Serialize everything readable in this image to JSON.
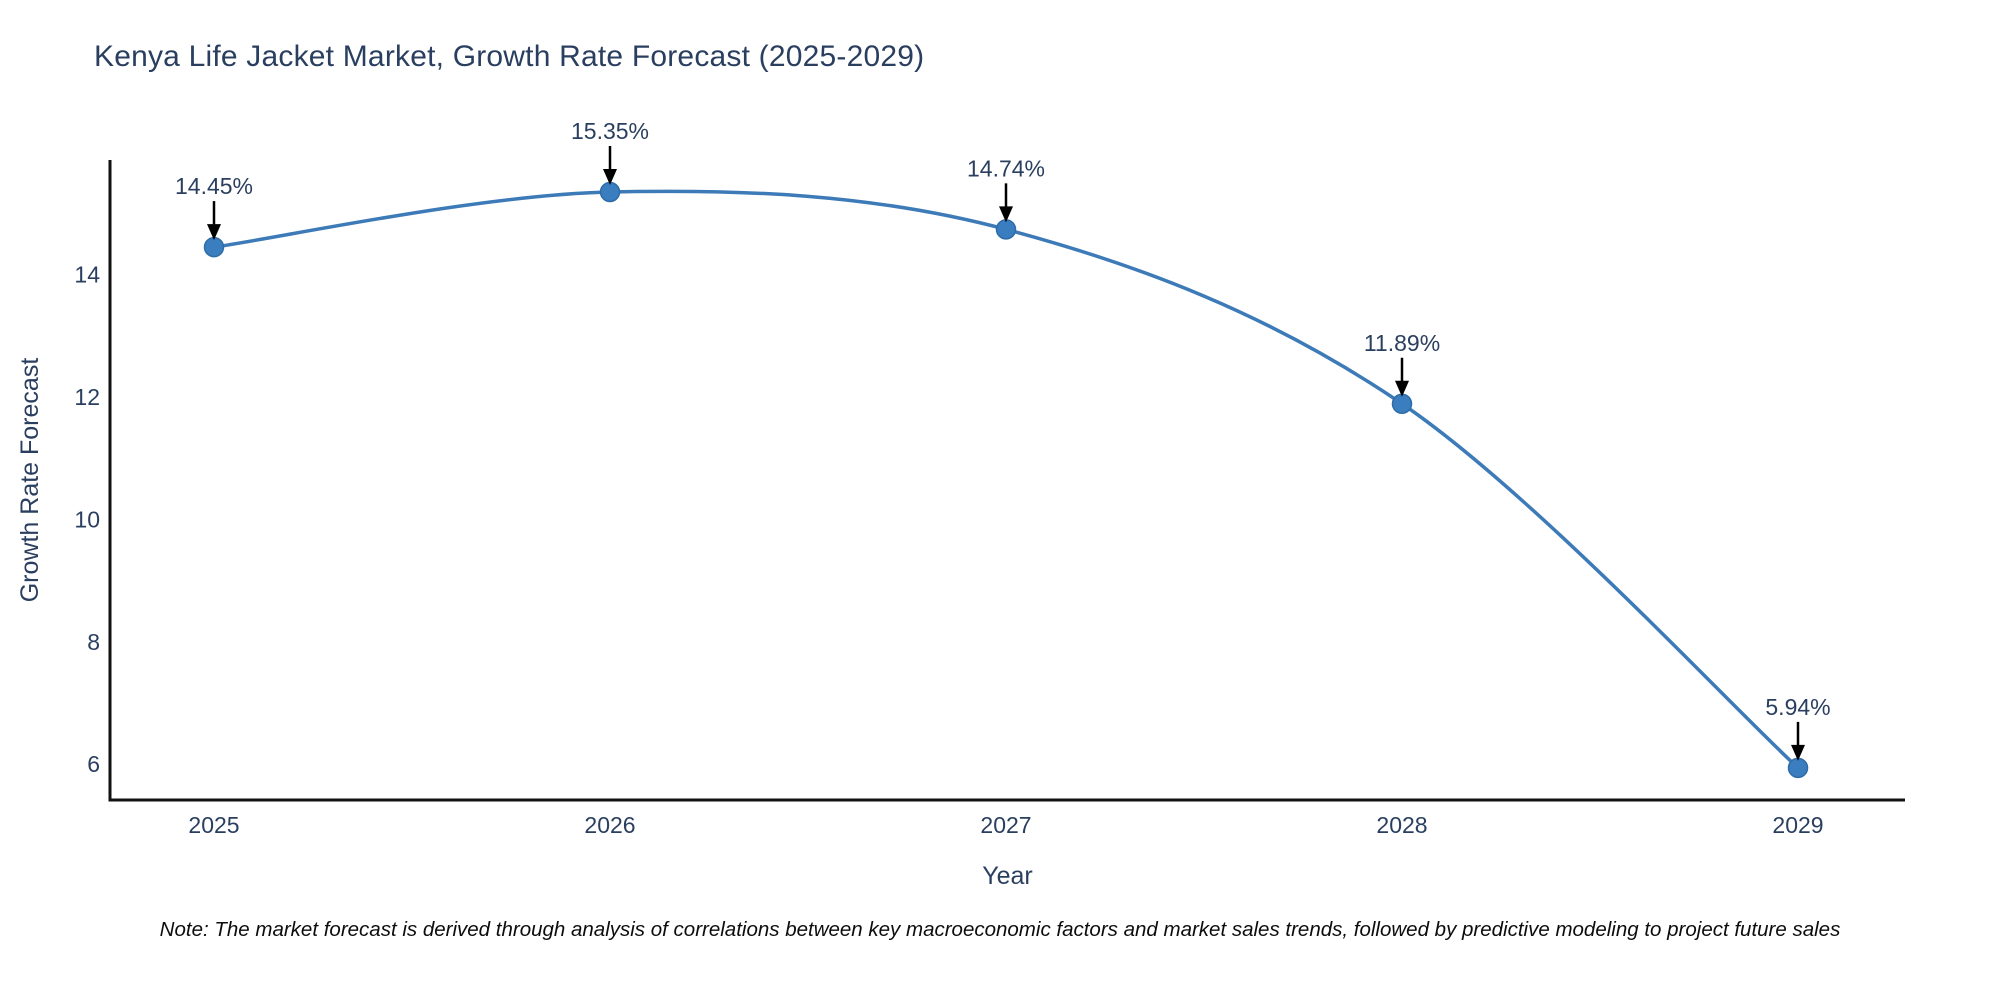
{
  "title": "Kenya Life Jacket Market, Growth Rate Forecast (2025-2029)",
  "note": "Note: The market forecast is derived through analysis of correlations between key macroeconomic factors and market sales trends, followed by predictive modeling to project future sales",
  "chart_data": {
    "type": "line",
    "title": "Kenya Life Jacket Market, Growth Rate Forecast (2025-2029)",
    "x": [
      2025,
      2026,
      2027,
      2028,
      2029
    ],
    "categories": [
      "2025",
      "2026",
      "2027",
      "2028",
      "2029"
    ],
    "series": [
      {
        "name": "Growth Rate Forecast",
        "values": [
          14.45,
          15.35,
          14.74,
          11.89,
          5.94
        ]
      }
    ],
    "point_labels": [
      "14.45%",
      "15.35%",
      "14.74%",
      "11.89%",
      "5.94%"
    ],
    "xlabel": "Year",
    "ylabel": "Growth Rate Forecast",
    "y_ticks": [
      6,
      8,
      10,
      12,
      14
    ],
    "ylim": [
      5.4,
      15.9
    ],
    "grid": false,
    "legend_position": "none",
    "line_shape": "spline",
    "marker": "circle",
    "colors": {
      "line": "#3d7ab8",
      "marker_fill": "#3a7ebf",
      "marker_edge": "#2e6ca8",
      "axis_line": "#111111",
      "tick_text": "#2a3f5f",
      "annotation_text": "#2a3f5f",
      "annotation_arrow": "#000000",
      "background": "#ffffff"
    }
  }
}
